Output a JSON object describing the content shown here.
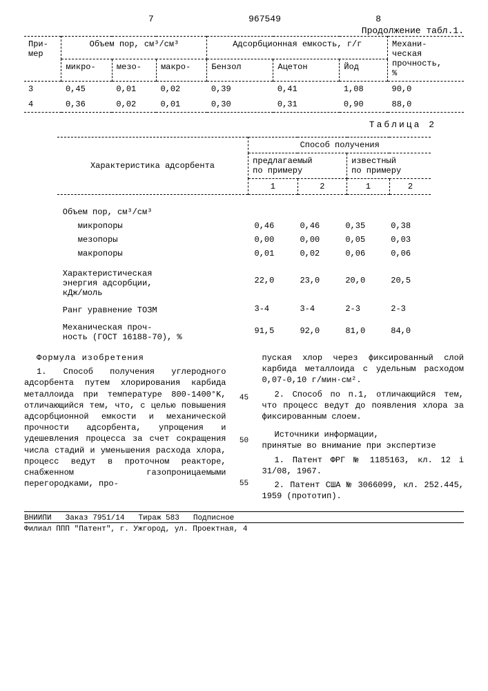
{
  "header": {
    "left_page": "7",
    "doc_number": "967549",
    "right_page": "8",
    "continuation": "Продолжение табл.1."
  },
  "table1": {
    "h_primer": "При-\nмер",
    "h_pore": "Объем пор, см³/см³",
    "h_adsorb": "Адсорбционная емкость, г/г",
    "h_mech": "Механи-\nческая\nпрочность,\n%",
    "sub_micro": "микро-",
    "sub_meso": "мезо-",
    "sub_macro": "макро-",
    "sub_benzol": "Бензол",
    "sub_acetone": "Ацетон",
    "sub_iod": "Йод",
    "rows": [
      [
        "3",
        "0,45",
        "0,01",
        "0,02",
        "0,39",
        "0,41",
        "1,08",
        "90,0"
      ],
      [
        "4",
        "0,36",
        "0,02",
        "0,01",
        "0,30",
        "0,31",
        "0,90",
        "88,0"
      ]
    ]
  },
  "table2": {
    "label": "Таблица 2",
    "h_char": "Характеристика адсорбента",
    "h_method": "Способ получения",
    "h_proposed": "предлагаемый\nпо примеру",
    "h_known": "известный\nпо примеру",
    "h_c1": "1",
    "h_c2": "2",
    "h_c3": "1",
    "h_c4": "2",
    "pore_header": "Объем пор, см³/см³",
    "rows": [
      {
        "l": "микропоры",
        "v": [
          "0,46",
          "0,46",
          "0,35",
          "0,38"
        ]
      },
      {
        "l": "мезопоры",
        "v": [
          "0,00",
          "0,00",
          "0,05",
          "0,03"
        ]
      },
      {
        "l": "макропоры",
        "v": [
          "0,01",
          "0,02",
          "0,06",
          "0,06"
        ]
      }
    ],
    "energy_l": "Характеристическая\nэнергия адсорбции,\nкДж/моль",
    "energy_v": [
      "22,0",
      "23,0",
      "20,0",
      "20,5"
    ],
    "rang_l": "Ранг уравнение ТОЗМ",
    "rang_v": [
      "3-4",
      "3-4",
      "2-3",
      "2-3"
    ],
    "mech_l": "Механическая проч-\nность (ГОСТ 16188-70), %",
    "mech_v": [
      "91,5",
      "92,0",
      "81,0",
      "84,0"
    ]
  },
  "claims": {
    "title": "Формула изобретения",
    "left_p1": "1. Способ получения углеродного адсорбента путем хлорирования кар­бида металлоида при температуре 800-1400°K, отличающийся тем, что, с целью повышения ад­сорбционной емкости и механической прочности адсорбента, упрощения и удешевления процесса за счет со­кращения числа стадий и уменьшения расхода хлора, процесс ведут в про­точном реакторе, снабженном га­зопроницаемыми перегородками, про-",
    "right_p1": "пуская хлор через фиксированный слой карбида металлоида с удельным расходом 0,07-0,10 г/мин·см².",
    "right_p2": "2. Способ по п.1, отличаю­щийся тем, что процесс ведут до появления хлора за фиксированным слоем.",
    "sources_h": "Источники информации,\nпринятые во внимание при экспертизе",
    "src1": "1. Патент ФРГ № 1185163, кл. 12 і 31/08, 1967.",
    "src2": "2. Патент США № 3066099, кл. 252.445, 1959 (прототип).",
    "ln45": "45",
    "ln50": "50",
    "ln55": "55"
  },
  "footer": {
    "line1_a": "ВНИИПИ",
    "line1_b": "Заказ 7951/14",
    "line1_c": "Тираж 583",
    "line1_d": "Подписное",
    "line2": "Филиал ППП \"Патент\", г. Ужгород, ул. Проектная, 4"
  }
}
